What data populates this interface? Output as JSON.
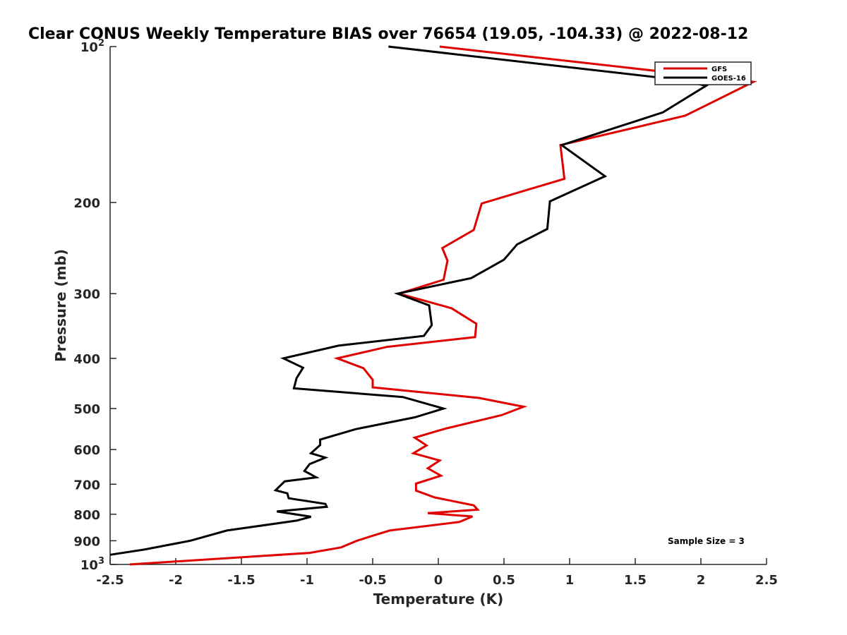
{
  "chart_data": {
    "type": "line",
    "title": "Clear CONUS Weekly Temperature BIAS over 76654 (19.05, -104.33) @ 2022-08-12",
    "xlabel": "Temperature (K)",
    "ylabel": "Pressure (mb)",
    "xlim": [
      -2.5,
      2.5
    ],
    "ylim": [
      100,
      1000
    ],
    "y_scale": "log",
    "y_reversed": true,
    "grid": false,
    "legend_placement": "top-right",
    "x_ticks": [
      {
        "value": -2.5,
        "label": "-2.5"
      },
      {
        "value": -2,
        "label": "-2"
      },
      {
        "value": -1.5,
        "label": "-1.5"
      },
      {
        "value": -1,
        "label": "-1"
      },
      {
        "value": -0.5,
        "label": "-0.5"
      },
      {
        "value": 0,
        "label": "0"
      },
      {
        "value": 0.5,
        "label": "0.5"
      },
      {
        "value": 1,
        "label": "1"
      },
      {
        "value": 1.5,
        "label": "1.5"
      },
      {
        "value": 2,
        "label": "2"
      },
      {
        "value": 2.5,
        "label": "2.5"
      }
    ],
    "y_ticks": [
      {
        "value": 200,
        "label": "200"
      },
      {
        "value": 300,
        "label": "300"
      },
      {
        "value": 400,
        "label": "400"
      },
      {
        "value": 500,
        "label": "500"
      },
      {
        "value": 600,
        "label": "600"
      },
      {
        "value": 700,
        "label": "700"
      },
      {
        "value": 800,
        "label": "800"
      },
      {
        "value": 900,
        "label": "900"
      }
    ],
    "y_ticks_power": [
      {
        "value": 100,
        "base": "10",
        "exp": "2"
      },
      {
        "value": 1000,
        "base": "10",
        "exp": "3"
      }
    ],
    "annotation": "Sample Size = 3",
    "series": [
      {
        "name": "GFS",
        "color": "#e00000",
        "points": [
          [
            0.01,
            100
          ],
          [
            2.4,
            117
          ],
          [
            1.88,
            136
          ],
          [
            0.93,
            155
          ],
          [
            0.96,
            180
          ],
          [
            0.33,
            201
          ],
          [
            0.27,
            226
          ],
          [
            0.03,
            245
          ],
          [
            0.07,
            259
          ],
          [
            0.04,
            282
          ],
          [
            -0.3,
            300
          ],
          [
            0.1,
            320
          ],
          [
            0.29,
            343
          ],
          [
            0.28,
            364
          ],
          [
            -0.39,
            380
          ],
          [
            -0.77,
            400
          ],
          [
            -0.57,
            418
          ],
          [
            -0.5,
            440
          ],
          [
            -0.5,
            455
          ],
          [
            0.31,
            477
          ],
          [
            0.65,
            496
          ],
          [
            0.48,
            515
          ],
          [
            0.05,
            547
          ],
          [
            -0.18,
            569
          ],
          [
            -0.09,
            589
          ],
          [
            -0.19,
            610
          ],
          [
            0.01,
            630
          ],
          [
            -0.08,
            652
          ],
          [
            0.02,
            674
          ],
          [
            -0.17,
            698
          ],
          [
            -0.17,
            720
          ],
          [
            -0.03,
            742
          ],
          [
            0.27,
            769
          ],
          [
            0.3,
            784
          ],
          [
            -0.08,
            796
          ],
          [
            0.26,
            808
          ],
          [
            0.16,
            828
          ],
          [
            -0.37,
            860
          ],
          [
            -0.5,
            880
          ],
          [
            -0.62,
            900
          ],
          [
            -0.74,
            927
          ],
          [
            -0.98,
            950
          ],
          [
            -2.35,
            1000
          ]
        ]
      },
      {
        "name": "GOES-16",
        "color": "#000000",
        "points": [
          [
            -0.38,
            100
          ],
          [
            1.84,
            116
          ],
          [
            2.04,
            119
          ],
          [
            1.71,
            134
          ],
          [
            0.94,
            155
          ],
          [
            1.27,
            178
          ],
          [
            0.85,
            199
          ],
          [
            0.83,
            225
          ],
          [
            0.6,
            241
          ],
          [
            0.5,
            258
          ],
          [
            0.25,
            280
          ],
          [
            -0.31,
            300
          ],
          [
            -0.07,
            316
          ],
          [
            -0.05,
            345
          ],
          [
            -0.11,
            362
          ],
          [
            -0.76,
            378
          ],
          [
            -1.18,
            400
          ],
          [
            -1.03,
            417
          ],
          [
            -1.08,
            437
          ],
          [
            -1.1,
            457
          ],
          [
            -0.27,
            475
          ],
          [
            0.04,
            500
          ],
          [
            -0.18,
            520
          ],
          [
            -0.63,
            548
          ],
          [
            -0.9,
            574
          ],
          [
            -0.9,
            588
          ],
          [
            -0.97,
            610
          ],
          [
            -0.86,
            622
          ],
          [
            -0.98,
            640
          ],
          [
            -1.02,
            660
          ],
          [
            -0.93,
            679
          ],
          [
            -1.17,
            691
          ],
          [
            -1.24,
            719
          ],
          [
            -1.15,
            729
          ],
          [
            -1.14,
            745
          ],
          [
            -0.86,
            764
          ],
          [
            -0.85,
            774
          ],
          [
            -1.23,
            790
          ],
          [
            -0.97,
            809
          ],
          [
            -1.08,
            823
          ],
          [
            -1.61,
            860
          ],
          [
            -1.89,
            900
          ],
          [
            -2.24,
            936
          ],
          [
            -2.5,
            958
          ]
        ]
      }
    ]
  }
}
